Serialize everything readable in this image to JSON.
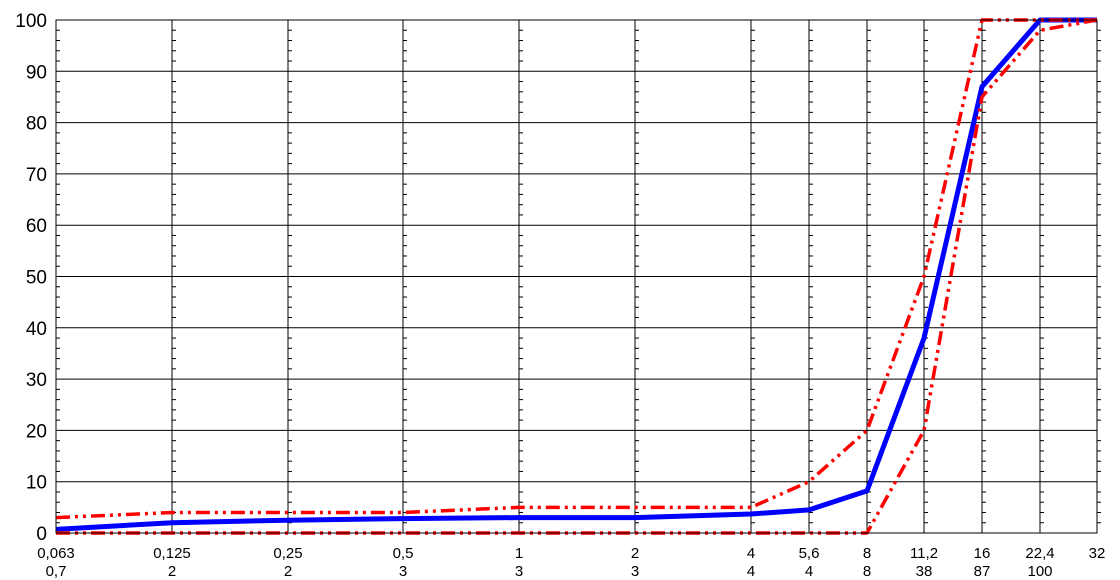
{
  "chart_data": {
    "type": "line",
    "title": "",
    "xlabel": "",
    "ylabel": "",
    "ylim": [
      0,
      100
    ],
    "y_ticks": [
      0,
      10,
      20,
      30,
      40,
      50,
      60,
      70,
      80,
      90,
      100
    ],
    "categories": [
      "0,063",
      "0,125",
      "0,25",
      "0,5",
      "1",
      "2",
      "4",
      "5,6",
      "8",
      "11,2",
      "16",
      "22,4",
      "32"
    ],
    "secondary_labels": [
      "0,7",
      "2",
      "2",
      "3",
      "3",
      "3",
      "4",
      "4",
      "8",
      "38",
      "87",
      "100",
      ""
    ],
    "x_spacing_note": "",
    "grid": true,
    "series": [
      {
        "name": "",
        "color": "#0000ff",
        "style": "solid",
        "values": [
          0.7,
          2,
          2.5,
          2.8,
          3,
          3,
          3.7,
          4.5,
          8.2,
          38,
          87,
          100,
          100
        ]
      },
      {
        "name": "",
        "color": "#ff0000",
        "style": "dash-dot-dot",
        "values": [
          3,
          4,
          4,
          4,
          5,
          5,
          5,
          10,
          20,
          50,
          100,
          100,
          100
        ]
      },
      {
        "name": "",
        "color": "#ff0000",
        "style": "dash-dot-dot",
        "values": [
          0,
          0,
          0,
          0,
          0,
          0,
          0,
          0,
          0,
          20,
          85,
          98,
          100
        ]
      }
    ]
  }
}
